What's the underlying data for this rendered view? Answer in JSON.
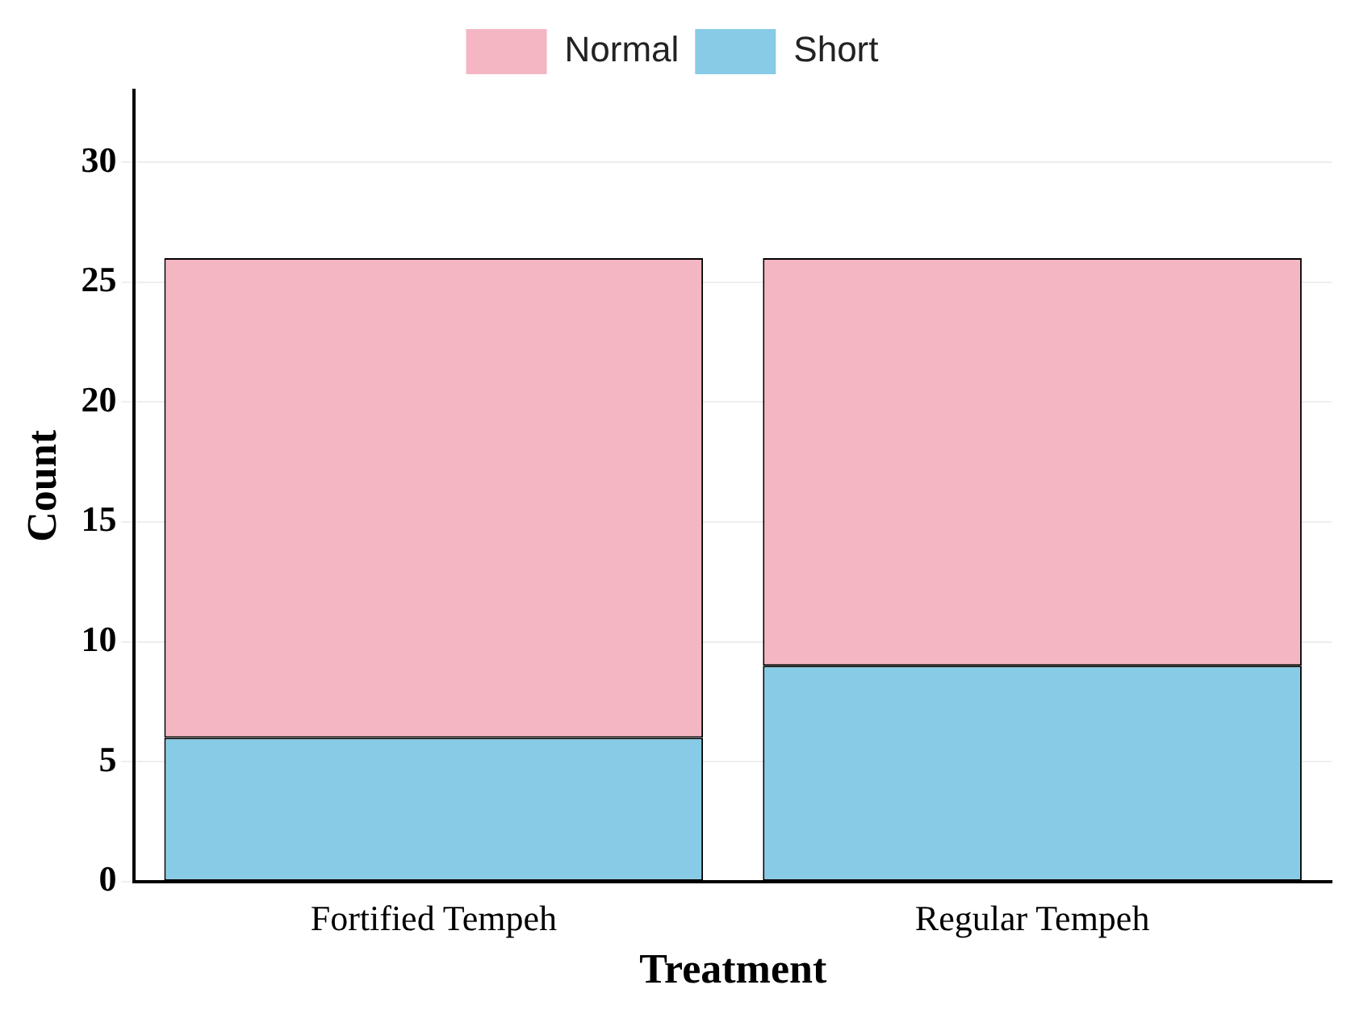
{
  "chart_data": {
    "type": "bar",
    "xlabel": "Treatment",
    "ylabel": "Count",
    "categories": [
      "Fortified Tempeh",
      "Regular Tempeh"
    ],
    "stacked": true,
    "series": [
      {
        "name": "Short",
        "color": "#87cbe6",
        "values": [
          6,
          9
        ]
      },
      {
        "name": "Normal",
        "color": "#f4b6c2",
        "values": [
          20,
          17
        ]
      }
    ],
    "ylim": [
      0,
      33
    ],
    "yticks": [
      0,
      5,
      10,
      15,
      20,
      25,
      30
    ],
    "grid": "y",
    "legend": "top"
  }
}
